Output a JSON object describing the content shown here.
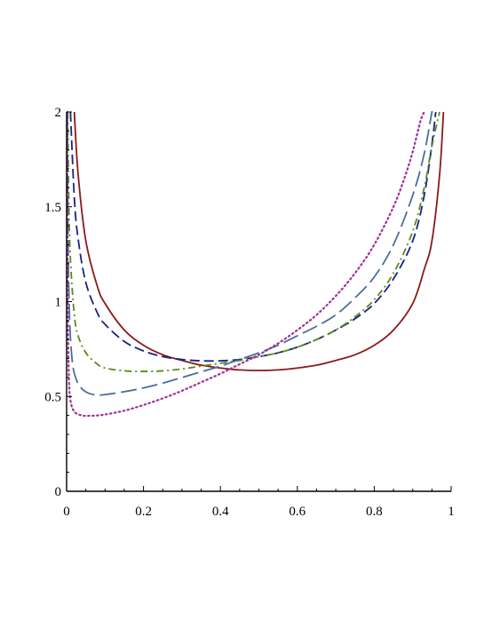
{
  "chart_data": {
    "type": "line",
    "title": "",
    "xlabel": "",
    "ylabel": "",
    "xlim": [
      0,
      1
    ],
    "ylim": [
      0,
      2
    ],
    "grid": false,
    "legend": "none",
    "x_ticks": [
      "0",
      "0.2",
      "0.4",
      "0.6",
      "0.8",
      "1"
    ],
    "y_ticks": [
      "0",
      "0.5",
      "1",
      "1.5",
      "2"
    ],
    "x_tick_values": [
      0,
      0.2,
      0.4,
      0.6,
      0.8,
      1
    ],
    "y_tick_values": [
      0,
      0.5,
      1,
      1.5,
      2
    ],
    "series": [
      {
        "color": "#8b1a1a",
        "style": "solid",
        "x": [
          0.02,
          0.03,
          0.05,
          0.08,
          0.1,
          0.15,
          0.2,
          0.25,
          0.3,
          0.35,
          0.4,
          0.45,
          0.5,
          0.55,
          0.6,
          0.65,
          0.7,
          0.75,
          0.8,
          0.85,
          0.9,
          0.93,
          0.95,
          0.97,
          0.98
        ],
        "y": [
          2.0,
          1.67,
          1.32,
          1.08,
          0.99,
          0.85,
          0.77,
          0.72,
          0.69,
          0.665,
          0.65,
          0.64,
          0.637,
          0.64,
          0.65,
          0.665,
          0.69,
          0.72,
          0.77,
          0.85,
          0.99,
          1.17,
          1.32,
          1.67,
          2.0
        ]
      },
      {
        "color": "#1a237e",
        "style": "dashed",
        "x": [
          0.01,
          0.02,
          0.03,
          0.05,
          0.08,
          0.1,
          0.15,
          0.2,
          0.25,
          0.3,
          0.35,
          0.4,
          0.45,
          0.5,
          0.55,
          0.6,
          0.65,
          0.7,
          0.75,
          0.8,
          0.85,
          0.9,
          0.93,
          0.95,
          0.96
        ],
        "y": [
          2.0,
          1.55,
          1.33,
          1.1,
          0.94,
          0.88,
          0.79,
          0.74,
          0.71,
          0.695,
          0.688,
          0.688,
          0.695,
          0.71,
          0.73,
          0.76,
          0.8,
          0.85,
          0.91,
          0.99,
          1.12,
          1.32,
          1.56,
          1.83,
          2.0
        ]
      },
      {
        "color": "#5a8a1a",
        "style": "dashdot",
        "x": [
          0.003,
          0.006,
          0.01,
          0.02,
          0.03,
          0.05,
          0.08,
          0.1,
          0.15,
          0.2,
          0.25,
          0.3,
          0.35,
          0.4,
          0.45,
          0.5,
          0.55,
          0.6,
          0.65,
          0.7,
          0.75,
          0.8,
          0.85,
          0.9,
          0.93,
          0.95,
          0.97
        ],
        "y": [
          2.0,
          1.5,
          1.22,
          0.93,
          0.82,
          0.73,
          0.67,
          0.65,
          0.635,
          0.632,
          0.635,
          0.645,
          0.66,
          0.675,
          0.69,
          0.71,
          0.73,
          0.76,
          0.8,
          0.85,
          0.92,
          1.01,
          1.15,
          1.37,
          1.6,
          1.82,
          2.0
        ]
      },
      {
        "color": "#4a6f9a",
        "style": "longdash",
        "x": [
          0.002,
          0.004,
          0.008,
          0.015,
          0.025,
          0.04,
          0.06,
          0.08,
          0.1,
          0.15,
          0.2,
          0.25,
          0.3,
          0.35,
          0.4,
          0.45,
          0.5,
          0.55,
          0.6,
          0.65,
          0.7,
          0.75,
          0.8,
          0.85,
          0.9,
          0.93,
          0.95,
          0.96
        ],
        "y": [
          2.0,
          1.3,
          0.9,
          0.68,
          0.59,
          0.54,
          0.515,
          0.508,
          0.51,
          0.525,
          0.545,
          0.57,
          0.6,
          0.63,
          0.66,
          0.695,
          0.73,
          0.77,
          0.82,
          0.87,
          0.93,
          1.02,
          1.13,
          1.3,
          1.56,
          1.78,
          2.0,
          2.1
        ]
      },
      {
        "color": "#a0309a",
        "style": "dotted",
        "x": [
          0.001,
          0.003,
          0.006,
          0.01,
          0.02,
          0.04,
          0.06,
          0.08,
          0.1,
          0.15,
          0.2,
          0.25,
          0.3,
          0.35,
          0.4,
          0.45,
          0.5,
          0.55,
          0.6,
          0.65,
          0.7,
          0.75,
          0.8,
          0.85,
          0.88,
          0.9,
          0.92,
          0.93
        ],
        "y": [
          2.0,
          1.0,
          0.6,
          0.48,
          0.42,
          0.4,
          0.398,
          0.4,
          0.405,
          0.425,
          0.455,
          0.49,
          0.53,
          0.575,
          0.62,
          0.67,
          0.72,
          0.78,
          0.85,
          0.93,
          1.03,
          1.15,
          1.3,
          1.5,
          1.66,
          1.79,
          1.95,
          2.0
        ]
      }
    ]
  }
}
